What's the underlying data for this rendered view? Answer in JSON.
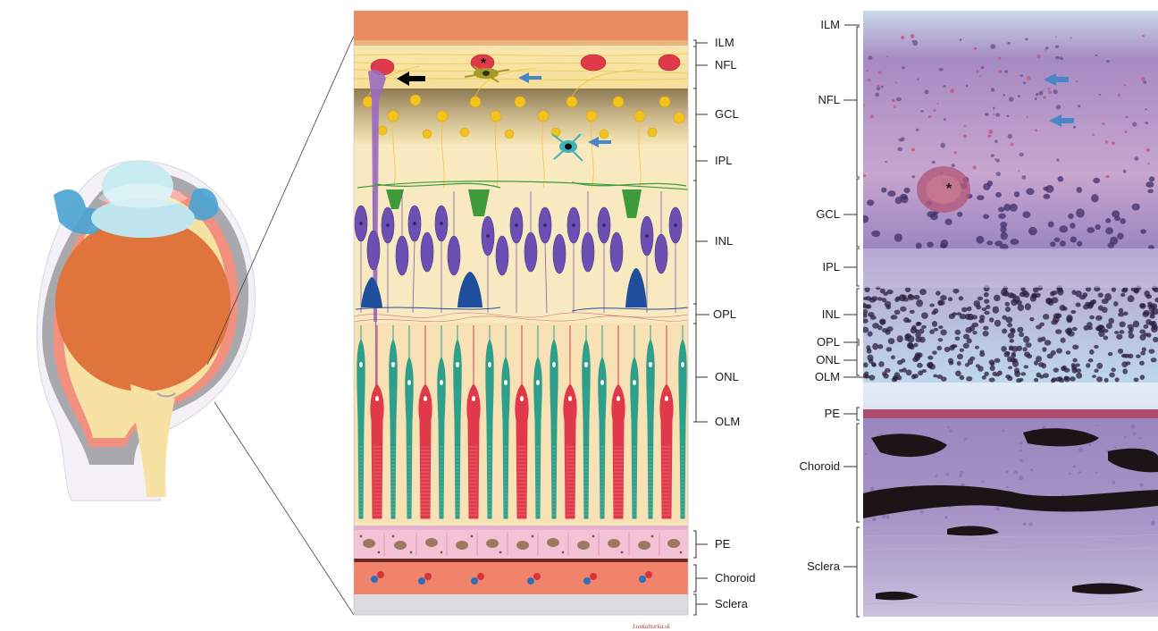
{
  "diagram": {
    "illustration_layers": [
      "ILM",
      "NFL",
      "GCL",
      "IPL",
      "INL",
      "OPL",
      "ONL",
      "OLM",
      "PE",
      "Choroid",
      "Sclera"
    ],
    "histology_layers": [
      "ILM",
      "NFL",
      "GCL",
      "IPL",
      "INL",
      "OPL",
      "ONL",
      "OLM",
      "PE",
      "Choroid",
      "Sclera"
    ],
    "markers": {
      "asterisk": "*"
    },
    "signature": "Loukaltorka.sk",
    "colors": {
      "cone_red": "#e0394a",
      "rod_teal": "#2e9f8a",
      "bipolar_purple": "#6d4fb4",
      "amacrine_green": "#3e9b3b",
      "horizontal_blue": "#1f4f9c",
      "ganglion_yellow": "#f3c21d",
      "arrow_blue": "#4a86c6",
      "arrow_black": "#000000",
      "pe_pink": "#f4c2d6",
      "choroid_orange": "#f1836a",
      "histology_purple": "#8a6fb0"
    },
    "icons": [
      "eye-globe-cross-section",
      "blue-arrow-icon",
      "black-arrow-icon",
      "asterisk-marker"
    ]
  }
}
